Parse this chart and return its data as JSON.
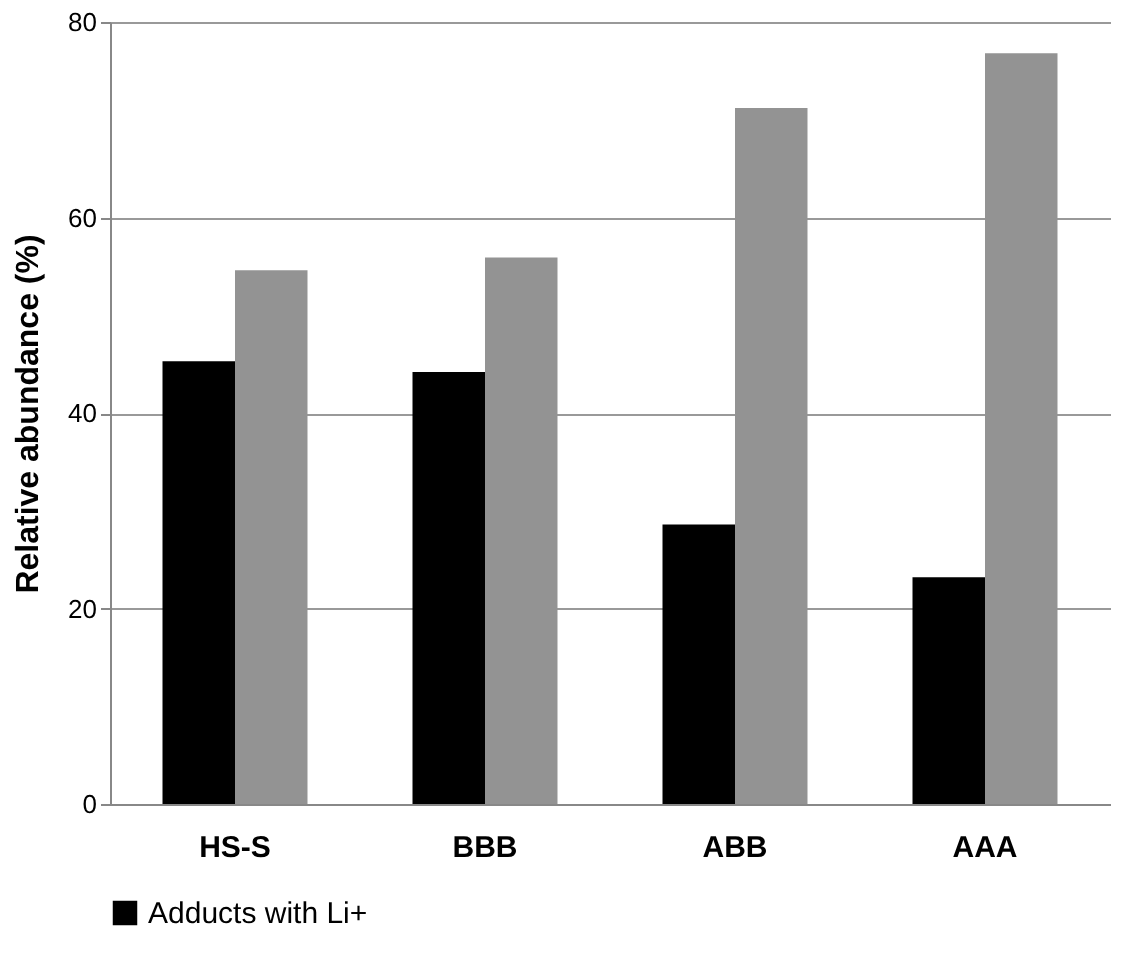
{
  "chart_data": {
    "type": "bar",
    "ylabel": "Relative abundance  (%)",
    "categories": [
      "HS-S",
      "BBB",
      "ABB",
      "AAA"
    ],
    "series": [
      {
        "name": "Adducts with Li+",
        "color": "#000000",
        "values": [
          45.3,
          44.2,
          28.6,
          23.2
        ]
      },
      {
        "color": "#939393",
        "values": [
          54.6,
          55.9,
          71.2,
          76.8
        ]
      }
    ],
    "ylim": [
      0,
      80
    ],
    "yticks": [
      0,
      20,
      40,
      60,
      80
    ],
    "grid": "y",
    "legend": "bottom"
  }
}
